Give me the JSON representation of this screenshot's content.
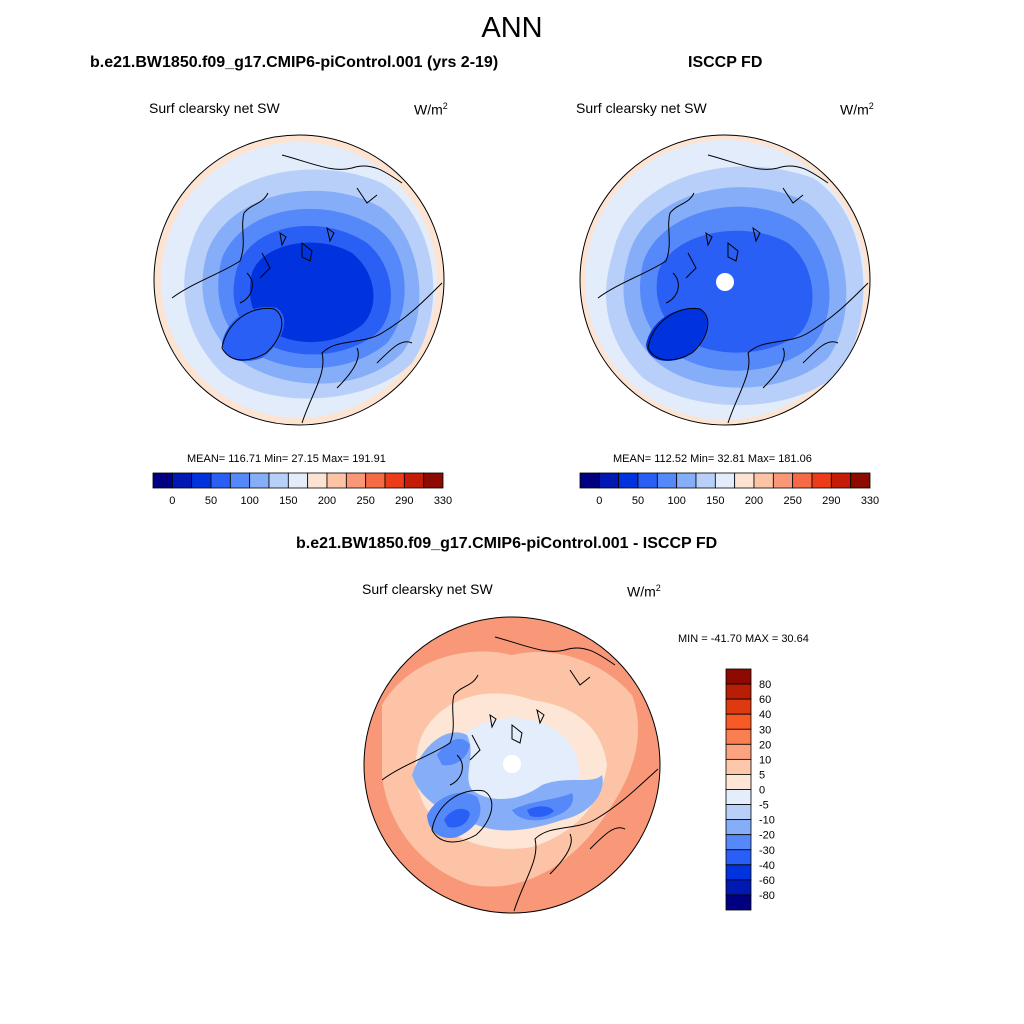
{
  "page_title": "ANN",
  "panels": [
    {
      "id": "model",
      "title": "b.e21.BW1850.f09_g17.CMIP6-piControl.001 (yrs 2-19)",
      "variable": "Surf clearsky net SW",
      "units_base": "W/m",
      "units_exp": "2",
      "stats": "MEAN= 116.71  Min=  27.15  Max= 191.91",
      "colorbar": {
        "colors": [
          "#000080",
          "#0019b3",
          "#0033dd",
          "#2a5ff5",
          "#5588f8",
          "#86aef8",
          "#b7cff9",
          "#e2ecfb",
          "#fde4d2",
          "#fcc3a6",
          "#f99878",
          "#f66a45",
          "#ec3c1a",
          "#c41c06",
          "#8c0a00"
        ],
        "tick_labels": [
          "0",
          "50",
          "100",
          "150",
          "200",
          "250",
          "290",
          "330"
        ]
      },
      "has_hole": false
    },
    {
      "id": "obs",
      "title": "ISCCP FD",
      "variable": "Surf clearsky net SW",
      "units_base": "W/m",
      "units_exp": "2",
      "stats": "MEAN= 112.52  Min=  32.81  Max= 181.06",
      "colorbar": {
        "colors": [
          "#000080",
          "#0019b3",
          "#0033dd",
          "#2a5ff5",
          "#5588f8",
          "#86aef8",
          "#b7cff9",
          "#e2ecfb",
          "#fde4d2",
          "#fcc3a6",
          "#f99878",
          "#f66a45",
          "#ec3c1a",
          "#c41c06",
          "#8c0a00"
        ],
        "tick_labels": [
          "0",
          "50",
          "100",
          "150",
          "200",
          "250",
          "290",
          "330"
        ]
      },
      "has_hole": true
    },
    {
      "id": "diff",
      "title": "b.e21.BW1850.f09_g17.CMIP6-piControl.001 - ISCCP FD",
      "variable": "Surf clearsky net SW",
      "units_base": "W/m",
      "units_exp": "2",
      "stats": "MIN = -41.70 MAX =  30.64",
      "colorbar": {
        "colors": [
          "#8c0a00",
          "#b81e03",
          "#dd3a0f",
          "#f85a25",
          "#f97e50",
          "#fba27e",
          "#fcc7aa",
          "#fde6d6",
          "#e3edfb",
          "#b8cffa",
          "#86aef8",
          "#5588f8",
          "#2a5ff5",
          "#0033dd",
          "#0019b3",
          "#000080"
        ],
        "tick_labels": [
          "80",
          "60",
          "40",
          "30",
          "20",
          "10",
          "5",
          "0",
          "-5",
          "-10",
          "-20",
          "-30",
          "-40",
          "-60",
          "-80"
        ]
      },
      "has_hole": true
    }
  ],
  "map_colors": {
    "outline": "#000000",
    "abs_outer": "#fde4d2",
    "abs_ring1": "#e2ecfb",
    "abs_ring2": "#b7cff9",
    "abs_ring3": "#86aef8",
    "abs_ring4": "#5588f8",
    "abs_ring5": "#2a5ff5",
    "abs_core": "#0033dd",
    "diff_warm": "#f99878",
    "diff_warm2": "#fcc3a6",
    "diff_light": "#fde6d6",
    "diff_pale": "#e3edfb",
    "diff_cool": "#86aef8",
    "diff_cool2": "#5588f8",
    "diff_cool3": "#2a5ff5",
    "hole": "#ffffff"
  }
}
